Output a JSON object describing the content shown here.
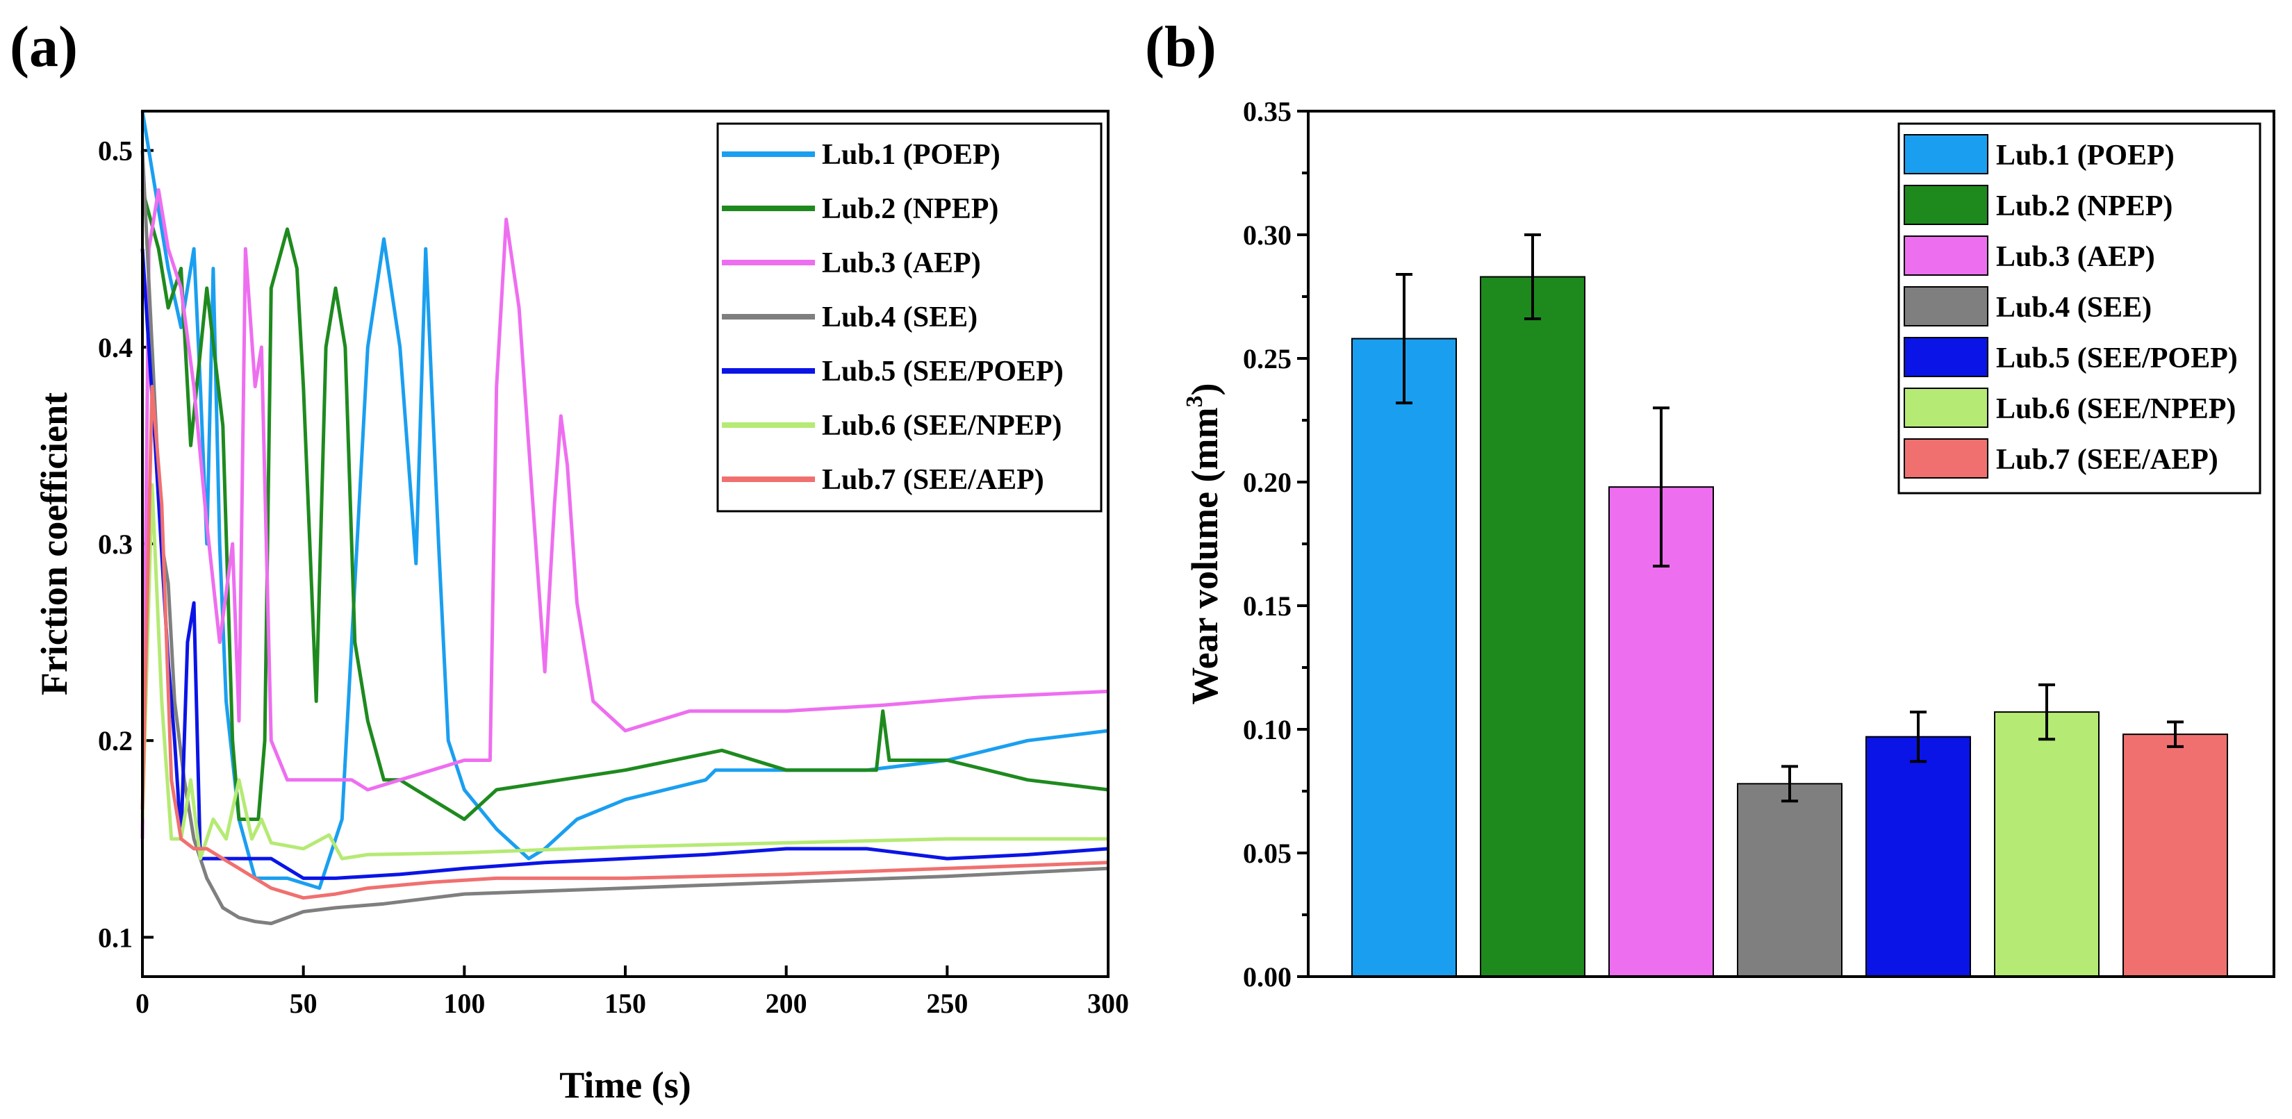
{
  "panel_labels": {
    "a": "(a)",
    "b": "(b)"
  },
  "chart_data": [
    {
      "type": "line",
      "panel": "(a)",
      "xlabel": "Time (s)",
      "ylabel": "Friction coefficient",
      "xlim": [
        0,
        300
      ],
      "ylim": [
        0.08,
        0.52
      ],
      "xticks": [
        0,
        50,
        100,
        150,
        200,
        250,
        300
      ],
      "yticks": [
        0.1,
        0.2,
        0.3,
        0.4,
        0.5
      ],
      "legend_position": "top-right",
      "series": [
        {
          "name": "Lub.1 (POEP)",
          "color": "#1a9ff0",
          "points": [
            [
              0,
              0.52
            ],
            [
              3,
              0.49
            ],
            [
              8,
              0.44
            ],
            [
              12,
              0.41
            ],
            [
              16,
              0.45
            ],
            [
              18,
              0.38
            ],
            [
              20,
              0.3
            ],
            [
              22,
              0.44
            ],
            [
              24,
              0.3
            ],
            [
              26,
              0.22
            ],
            [
              30,
              0.16
            ],
            [
              35,
              0.13
            ],
            [
              45,
              0.13
            ],
            [
              55,
              0.125
            ],
            [
              62,
              0.16
            ],
            [
              66,
              0.28
            ],
            [
              70,
              0.4
            ],
            [
              75,
              0.455
            ],
            [
              80,
              0.4
            ],
            [
              85,
              0.29
            ],
            [
              88,
              0.45
            ],
            [
              92,
              0.3
            ],
            [
              95,
              0.2
            ],
            [
              100,
              0.175
            ],
            [
              110,
              0.155
            ],
            [
              120,
              0.14
            ],
            [
              125,
              0.145
            ],
            [
              135,
              0.16
            ],
            [
              150,
              0.17
            ],
            [
              175,
              0.18
            ],
            [
              178,
              0.185
            ],
            [
              200,
              0.185
            ],
            [
              225,
              0.185
            ],
            [
              250,
              0.19
            ],
            [
              275,
              0.2
            ],
            [
              300,
              0.205
            ]
          ]
        },
        {
          "name": "Lub.2 (NPEP)",
          "color": "#1e8a1e",
          "points": [
            [
              0,
              0.48
            ],
            [
              5,
              0.45
            ],
            [
              8,
              0.42
            ],
            [
              12,
              0.44
            ],
            [
              15,
              0.35
            ],
            [
              20,
              0.43
            ],
            [
              25,
              0.36
            ],
            [
              28,
              0.2
            ],
            [
              30,
              0.16
            ],
            [
              36,
              0.16
            ],
            [
              38,
              0.2
            ],
            [
              40,
              0.43
            ],
            [
              45,
              0.46
            ],
            [
              48,
              0.44
            ],
            [
              50,
              0.38
            ],
            [
              54,
              0.22
            ],
            [
              57,
              0.4
            ],
            [
              60,
              0.43
            ],
            [
              63,
              0.4
            ],
            [
              66,
              0.25
            ],
            [
              70,
              0.21
            ],
            [
              75,
              0.18
            ],
            [
              80,
              0.18
            ],
            [
              85,
              0.175
            ],
            [
              95,
              0.165
            ],
            [
              100,
              0.16
            ],
            [
              110,
              0.175
            ],
            [
              130,
              0.18
            ],
            [
              150,
              0.185
            ],
            [
              180,
              0.195
            ],
            [
              200,
              0.185
            ],
            [
              228,
              0.185
            ],
            [
              230,
              0.215
            ],
            [
              232,
              0.19
            ],
            [
              250,
              0.19
            ],
            [
              275,
              0.18
            ],
            [
              300,
              0.175
            ]
          ]
        },
        {
          "name": "Lub.3 (AEP)",
          "color": "#ee6ef0",
          "points": [
            [
              0,
              0.15
            ],
            [
              2,
              0.45
            ],
            [
              5,
              0.48
            ],
            [
              8,
              0.45
            ],
            [
              12,
              0.43
            ],
            [
              16,
              0.38
            ],
            [
              20,
              0.31
            ],
            [
              24,
              0.25
            ],
            [
              28,
              0.3
            ],
            [
              30,
              0.21
            ],
            [
              32,
              0.45
            ],
            [
              35,
              0.38
            ],
            [
              37,
              0.4
            ],
            [
              40,
              0.2
            ],
            [
              45,
              0.18
            ],
            [
              55,
              0.18
            ],
            [
              65,
              0.18
            ],
            [
              70,
              0.175
            ],
            [
              80,
              0.18
            ],
            [
              90,
              0.185
            ],
            [
              100,
              0.19
            ],
            [
              108,
              0.19
            ],
            [
              110,
              0.38
            ],
            [
              113,
              0.465
            ],
            [
              117,
              0.42
            ],
            [
              120,
              0.35
            ],
            [
              125,
              0.235
            ],
            [
              128,
              0.32
            ],
            [
              130,
              0.365
            ],
            [
              132,
              0.34
            ],
            [
              135,
              0.27
            ],
            [
              140,
              0.22
            ],
            [
              150,
              0.205
            ],
            [
              170,
              0.215
            ],
            [
              200,
              0.215
            ],
            [
              230,
              0.218
            ],
            [
              260,
              0.222
            ],
            [
              300,
              0.225
            ]
          ]
        },
        {
          "name": "Lub.4 (SEE)",
          "color": "#7f7f7f",
          "points": [
            [
              0,
              0.5
            ],
            [
              3,
              0.4
            ],
            [
              6,
              0.3
            ],
            [
              8,
              0.28
            ],
            [
              10,
              0.22
            ],
            [
              13,
              0.18
            ],
            [
              16,
              0.15
            ],
            [
              20,
              0.13
            ],
            [
              25,
              0.115
            ],
            [
              30,
              0.11
            ],
            [
              35,
              0.108
            ],
            [
              40,
              0.107
            ],
            [
              50,
              0.113
            ],
            [
              60,
              0.115
            ],
            [
              75,
              0.117
            ],
            [
              100,
              0.122
            ],
            [
              150,
              0.125
            ],
            [
              200,
              0.128
            ],
            [
              250,
              0.131
            ],
            [
              300,
              0.135
            ]
          ]
        },
        {
          "name": "Lub.5 (SEE/POEP)",
          "color": "#0a14e6",
          "points": [
            [
              0,
              0.45
            ],
            [
              4,
              0.35
            ],
            [
              8,
              0.24
            ],
            [
              10,
              0.2
            ],
            [
              12,
              0.15
            ],
            [
              14,
              0.25
            ],
            [
              16,
              0.27
            ],
            [
              18,
              0.14
            ],
            [
              22,
              0.14
            ],
            [
              30,
              0.14
            ],
            [
              40,
              0.14
            ],
            [
              50,
              0.13
            ],
            [
              60,
              0.13
            ],
            [
              80,
              0.132
            ],
            [
              100,
              0.135
            ],
            [
              125,
              0.138
            ],
            [
              150,
              0.14
            ],
            [
              175,
              0.142
            ],
            [
              200,
              0.145
            ],
            [
              225,
              0.145
            ],
            [
              250,
              0.14
            ],
            [
              275,
              0.142
            ],
            [
              300,
              0.145
            ]
          ]
        },
        {
          "name": "Lub.6 (SEE/NPEP)",
          "color": "#b5ea74",
          "points": [
            [
              0,
              0.16
            ],
            [
              3,
              0.33
            ],
            [
              6,
              0.22
            ],
            [
              9,
              0.15
            ],
            [
              12,
              0.15
            ],
            [
              15,
              0.18
            ],
            [
              18,
              0.14
            ],
            [
              22,
              0.16
            ],
            [
              26,
              0.15
            ],
            [
              30,
              0.18
            ],
            [
              34,
              0.15
            ],
            [
              37,
              0.16
            ],
            [
              40,
              0.148
            ],
            [
              50,
              0.145
            ],
            [
              58,
              0.152
            ],
            [
              62,
              0.14
            ],
            [
              70,
              0.142
            ],
            [
              100,
              0.143
            ],
            [
              150,
              0.146
            ],
            [
              200,
              0.148
            ],
            [
              250,
              0.15
            ],
            [
              300,
              0.15
            ]
          ]
        },
        {
          "name": "Lub.7 (SEE/AEP)",
          "color": "#f07070",
          "points": [
            [
              0,
              0.165
            ],
            [
              3,
              0.38
            ],
            [
              6,
              0.32
            ],
            [
              9,
              0.18
            ],
            [
              12,
              0.15
            ],
            [
              16,
              0.145
            ],
            [
              20,
              0.145
            ],
            [
              25,
              0.14
            ],
            [
              30,
              0.135
            ],
            [
              40,
              0.125
            ],
            [
              50,
              0.12
            ],
            [
              60,
              0.122
            ],
            [
              70,
              0.125
            ],
            [
              90,
              0.128
            ],
            [
              110,
              0.13
            ],
            [
              150,
              0.13
            ],
            [
              200,
              0.132
            ],
            [
              250,
              0.135
            ],
            [
              300,
              0.138
            ]
          ]
        }
      ]
    },
    {
      "type": "bar",
      "panel": "(b)",
      "xlabel": "",
      "ylabel": "Wear volume (mm",
      "ylabel_sup": "3",
      "ylabel_close": ")",
      "ylim": [
        0,
        0.35
      ],
      "yticks": [
        "0.00",
        "0.05",
        "0.10",
        "0.15",
        "0.20",
        "0.25",
        "0.30",
        "0.35"
      ],
      "legend_position": "top-right",
      "categories": [
        "Lub.1 (POEP)",
        "Lub.2 (NPEP)",
        "Lub.3 (AEP)",
        "Lub.4 (SEE)",
        "Lub.5 (SEE/POEP)",
        "Lub.6 (SEE/NPEP)",
        "Lub.7 (SEE/AEP)"
      ],
      "values": [
        0.258,
        0.283,
        0.198,
        0.078,
        0.097,
        0.107,
        0.098
      ],
      "errors": [
        0.026,
        0.017,
        0.032,
        0.007,
        0.01,
        0.011,
        0.005
      ],
      "colors": [
        "#1a9ff0",
        "#1e8a1e",
        "#ee6ef0",
        "#7f7f7f",
        "#0a14e6",
        "#b5ea74",
        "#f07070"
      ]
    }
  ]
}
